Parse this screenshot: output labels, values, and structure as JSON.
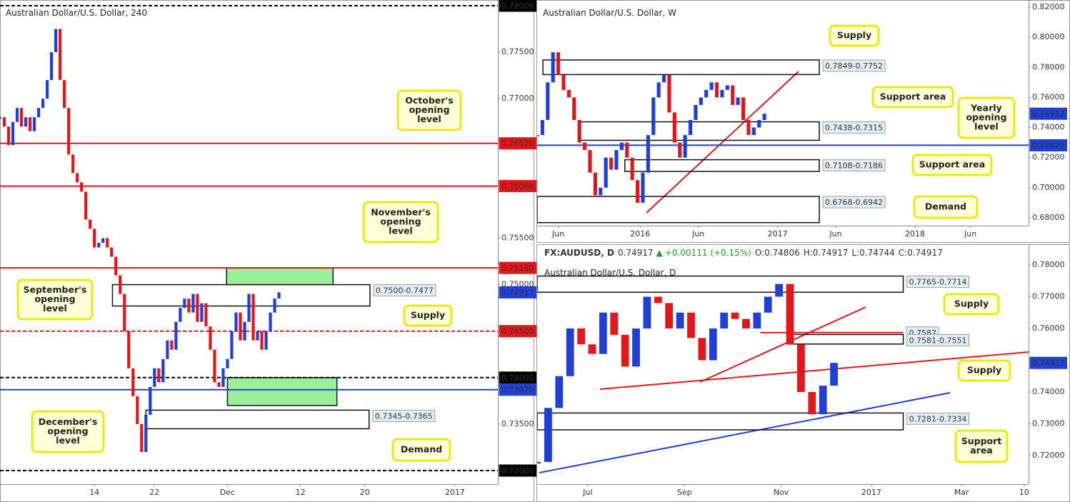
{
  "chart_data": [
    {
      "type": "candlestick",
      "title": "Australian Dollar/U.S. Dollar, 240",
      "xlim": [
        0,
        116
      ],
      "xticks": [
        {
          "value": 22,
          "label": "14"
        },
        {
          "value": 36,
          "label": "22"
        },
        {
          "value": 53,
          "label": "Dec"
        },
        {
          "value": 70,
          "label": "12"
        },
        {
          "value": 85,
          "label": "20"
        },
        {
          "value": 106,
          "label": "2017"
        }
      ],
      "ylim": [
        0.73,
        0.78
      ],
      "yticks": [
        {
          "value": 0.775,
          "label": "0.77500"
        },
        {
          "value": 0.77,
          "label": "0.77000"
        },
        {
          "value": 0.755,
          "label": "0.75500"
        },
        {
          "value": 0.75,
          "label": "0.75000"
        },
        {
          "value": 0.735,
          "label": "0.73500"
        }
      ],
      "up_color": "#1f3fd6",
      "down_color": "#e3171b",
      "values": [
        0.768,
        0.767,
        0.765,
        0.7675,
        0.769,
        0.767,
        0.768,
        0.7665,
        0.768,
        0.769,
        0.77,
        0.772,
        0.775,
        0.7775,
        0.772,
        0.769,
        0.764,
        0.762,
        0.761,
        0.76,
        0.757,
        0.756,
        0.754,
        0.7545,
        0.755,
        0.754,
        0.753,
        0.751,
        0.749,
        0.745,
        0.741,
        0.738,
        0.735,
        0.732,
        0.736,
        0.739,
        0.741,
        0.7395,
        0.742,
        0.744,
        0.743,
        0.746,
        0.7475,
        0.7485,
        0.747,
        0.749,
        0.746,
        0.748,
        0.7455,
        0.743,
        0.7395,
        0.739,
        0.741,
        0.742,
        0.745,
        0.747,
        0.744,
        0.746,
        0.749,
        0.744,
        0.745,
        0.743,
        0.745,
        0.747,
        0.7485,
        0.74917
      ],
      "zones": [
        {
          "label": "0.7500-0.7477",
          "top": 0.75,
          "bottom": 0.7477,
          "start": 26.2,
          "end": 86.2
        },
        {
          "top": 0.7518,
          "bottom": 0.75,
          "start": 52.8,
          "end": 77.6,
          "color": "#8fee8f"
        },
        {
          "top": 0.74,
          "bottom": 0.737,
          "start": 53,
          "end": 78.5,
          "color": "#8fee8f"
        },
        {
          "label": "0.7345-0.7365",
          "top": 0.7365,
          "bottom": 0.7345,
          "start": 34,
          "end": 86
        }
      ],
      "levels": [
        {
          "value": 0.78,
          "label": "0.78000",
          "color": "#000000",
          "dashed": true
        },
        {
          "value": 0.7652,
          "label": "0.76520",
          "color": "#e3171b",
          "dashed": false
        },
        {
          "value": 0.7606,
          "label": "0.76060",
          "color": "#e3171b",
          "dashed": false
        },
        {
          "value": 0.7518,
          "label": "0.75180",
          "color": "#e3171b",
          "dashed": false
        },
        {
          "value": 0.745,
          "label": "0.74500",
          "color": "#e3171b",
          "dashed": true
        },
        {
          "value": 0.74,
          "label": "0.74000",
          "color": "#000000",
          "dashed": true
        },
        {
          "value": 0.7387,
          "label": "0.73870",
          "color": "#1f3fd6",
          "dashed": false
        },
        {
          "value": 0.73,
          "label": "0.73000",
          "color": "#000000",
          "dashed": true
        }
      ],
      "last": {
        "value": 0.74917,
        "label": "0.74917"
      },
      "callouts": [
        {
          "lines": [
            "October's",
            "opening",
            "level"
          ]
        },
        {
          "lines": [
            "November's",
            "opening",
            "level"
          ]
        },
        {
          "lines": [
            "September's",
            "opening",
            "level"
          ]
        },
        {
          "lines": [
            "Supply"
          ]
        },
        {
          "lines": [
            "December's",
            "opening",
            "level"
          ]
        },
        {
          "lines": [
            "Demand"
          ]
        }
      ]
    },
    {
      "type": "candlestick",
      "title": "Australian Dollar/U.S. Dollar, W",
      "xlim": [
        0,
        93
      ],
      "xticks": [
        {
          "value": 4,
          "label": "Jun"
        },
        {
          "value": 19.5,
          "label": "2016"
        },
        {
          "value": 30.5,
          "label": "Jun"
        },
        {
          "value": 45.5,
          "label": "2017"
        },
        {
          "value": 56.5,
          "label": "Jun"
        },
        {
          "value": 71.5,
          "label": "2018"
        },
        {
          "value": 82,
          "label": "Jun"
        }
      ],
      "ylim": [
        0.68,
        0.82
      ],
      "yticks": [
        {
          "value": 0.82,
          "label": "0.82000"
        },
        {
          "value": 0.8,
          "label": "0.80000"
        },
        {
          "value": 0.78,
          "label": "0.78000"
        },
        {
          "value": 0.76,
          "label": "0.76000"
        },
        {
          "value": 0.74,
          "label": "0.74000"
        },
        {
          "value": 0.72,
          "label": "0.72000"
        },
        {
          "value": 0.7,
          "label": "0.70000"
        },
        {
          "value": 0.68,
          "label": "0.68000"
        }
      ],
      "up_color": "#1f3fd6",
      "down_color": "#e3171b",
      "values": [
        0.735,
        0.745,
        0.77,
        0.79,
        0.775,
        0.765,
        0.76,
        0.745,
        0.73,
        0.725,
        0.71,
        0.695,
        0.7,
        0.72,
        0.712,
        0.725,
        0.73,
        0.72,
        0.705,
        0.69,
        0.71,
        0.735,
        0.76,
        0.77,
        0.775,
        0.75,
        0.73,
        0.72,
        0.735,
        0.745,
        0.755,
        0.76,
        0.765,
        0.77,
        0.76,
        0.765,
        0.768,
        0.755,
        0.76,
        0.745,
        0.735,
        0.74,
        0.745,
        0.74917
      ],
      "zones": [
        {
          "label": "0.7849-0.7752",
          "top": 0.7849,
          "bottom": 0.7752,
          "start": 1.1,
          "end": 53.4
        },
        {
          "label": "0.7438-0.7315",
          "top": 0.7438,
          "bottom": 0.7315,
          "start": 7.8,
          "end": 53.4
        },
        {
          "label": "0.7108-0.7186",
          "top": 0.7186,
          "bottom": 0.7108,
          "start": 16.6,
          "end": 53.4
        },
        {
          "label": "0.6768-0.6942",
          "top": 0.6942,
          "bottom": 0.6768,
          "start": 0,
          "end": 53.4
        }
      ],
      "levels": [
        {
          "value": 0.7282,
          "label": "0.72820",
          "color": "#1f3fd6",
          "dashed": false
        }
      ],
      "last": {
        "value": 0.74917,
        "label": "0.74917"
      },
      "callouts": [
        {
          "lines": [
            "Supply"
          ]
        },
        {
          "lines": [
            "Support area"
          ]
        },
        {
          "lines": [
            "Yearly",
            "opening",
            "level"
          ]
        },
        {
          "lines": [
            "Support area"
          ]
        },
        {
          "lines": [
            "Demand"
          ]
        }
      ]
    },
    {
      "type": "candlestick",
      "title": "Australian Dollar/U.S. Dollar, D",
      "header": {
        "symbol": "FX:AUDUSD, D",
        "last": "0.74917",
        "change": "+0.00111 (+0.15%)",
        "open": "O:0.74806",
        "high": "H:0.74917",
        "low": "L:0.74744",
        "close": "C:0.74917"
      },
      "xlim": [
        0,
        44.7
      ],
      "xticks": [
        {
          "value": 4.6,
          "label": "Jul"
        },
        {
          "value": 13.4,
          "label": "Sep"
        },
        {
          "value": 22.2,
          "label": "Nov"
        },
        {
          "value": 30.4,
          "label": "2017"
        },
        {
          "value": 38.6,
          "label": "Mar"
        },
        {
          "value": 44.3,
          "label": "10"
        }
      ],
      "ylim": [
        0.72,
        0.78
      ],
      "yticks": [
        {
          "value": 0.78,
          "label": "0.78000"
        },
        {
          "value": 0.77,
          "label": "0.77000"
        },
        {
          "value": 0.76,
          "label": "0.76000"
        },
        {
          "value": 0.74,
          "label": "0.74000"
        },
        {
          "value": 0.73,
          "label": "0.73000"
        },
        {
          "value": 0.72,
          "label": "0.72000"
        }
      ],
      "up_color": "#1f3fd6",
      "down_color": "#e3171b",
      "values": [
        0.718,
        0.735,
        0.745,
        0.76,
        0.755,
        0.752,
        0.765,
        0.758,
        0.748,
        0.76,
        0.77,
        0.768,
        0.76,
        0.765,
        0.757,
        0.75,
        0.76,
        0.765,
        0.763,
        0.76,
        0.765,
        0.77,
        0.774,
        0.755,
        0.74,
        0.733,
        0.742,
        0.74917
      ],
      "zones": [
        {
          "label": "0.7765-0.7714",
          "top": 0.7765,
          "bottom": 0.7714,
          "start": 0,
          "end": 33.3
        },
        {
          "label": "0.7587",
          "top": 0.7587,
          "bottom": 0.7587,
          "start": 20.3,
          "end": 33.3,
          "color": "#e3171b"
        },
        {
          "label": "0.7581-0.7551",
          "top": 0.7581,
          "bottom": 0.7551,
          "start": 22.9,
          "end": 33.3
        },
        {
          "label": "0.7281-0.7334",
          "top": 0.7334,
          "bottom": 0.7281,
          "start": 0,
          "end": 33.3
        }
      ],
      "levels": [],
      "last": {
        "value": 0.74917,
        "label": "0.74917"
      },
      "callouts": [
        {
          "lines": [
            "Supply"
          ]
        },
        {
          "lines": [
            "Supply"
          ]
        },
        {
          "lines": [
            "Support",
            "area"
          ]
        }
      ]
    }
  ]
}
